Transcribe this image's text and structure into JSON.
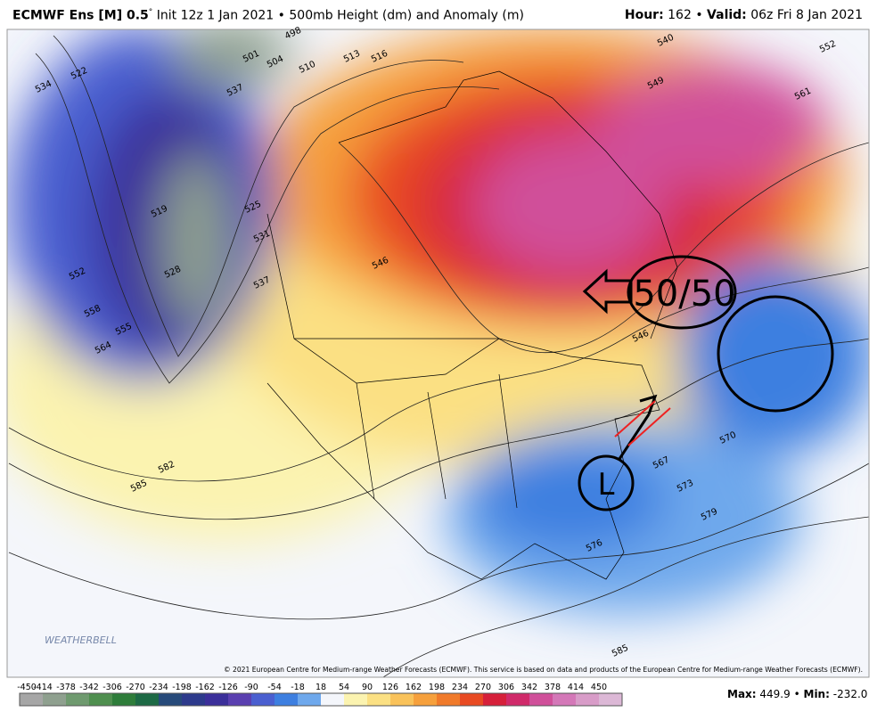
{
  "header": {
    "model": "ECMWF Ens [M] 0.5",
    "degree": "°",
    "init": "Init 12z 1 Jan 2021",
    "sep": "•",
    "field": "500mb Height (dm) and Anomaly (m)",
    "hour_label": "Hour:",
    "hour": 162,
    "valid_label": "Valid:",
    "valid": "06z Fri 8 Jan 2021"
  },
  "map": {
    "contour_labels": [
      498,
      501,
      504,
      510,
      513,
      516,
      519,
      522,
      525,
      528,
      531,
      534,
      537,
      537,
      540,
      546,
      546,
      549,
      552,
      552,
      555,
      558,
      561,
      564,
      567,
      570,
      573,
      576,
      579,
      582,
      585,
      585
    ],
    "annotations": {
      "fifty": "50/50",
      "low": "L"
    },
    "copyright": "© 2021 European Centre for Medium-range Weather Forecasts (ECMWF). This service is based on data and products of the European Centre for Medium-range Weather Forecasts (ECMWF).",
    "logo": "WEATHERBELL"
  },
  "colorbar": {
    "ticks": [
      -450,
      -414,
      -378,
      -342,
      -306,
      -270,
      -234,
      -198,
      -162,
      -126,
      -90,
      -54,
      -18,
      18,
      54,
      90,
      126,
      162,
      198,
      234,
      270,
      306,
      342,
      378,
      414,
      450
    ],
    "colors": [
      "#a6a6a6",
      "#8fa08f",
      "#6f9a6f",
      "#4f8f4f",
      "#2e7d3a",
      "#1d6a45",
      "#274a7a",
      "#2d3a8c",
      "#3b2f9a",
      "#5a3fb0",
      "#4a5fd0",
      "#3d7fe0",
      "#6ea8ec",
      "#f4f6fb",
      "#fbf3b0",
      "#fbe083",
      "#f9c25a",
      "#f6a03c",
      "#f07a2a",
      "#e84a22",
      "#d6203a",
      "#d02a6a",
      "#d0509a",
      "#d478b8",
      "#d89cc8",
      "#dcb8d6"
    ]
  },
  "footer": {
    "max_label": "Max:",
    "max": 449.9,
    "min_label": "Min:",
    "min": -232.0
  }
}
